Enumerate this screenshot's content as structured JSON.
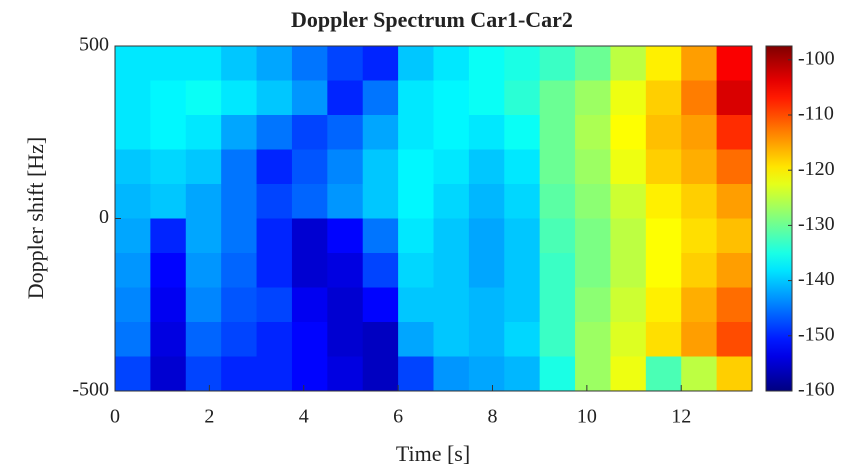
{
  "chart_data": {
    "type": "heatmap",
    "title": "Doppler Spectrum Car1-Car2",
    "x_label": "Time [s]",
    "y_label": "Doppler shift [Hz]",
    "colormap": "jet",
    "x": [
      0.375,
      1.125,
      1.875,
      2.625,
      3.375,
      4.125,
      4.875,
      5.625,
      6.375,
      7.125,
      7.875,
      8.625,
      9.375,
      10.125,
      10.875,
      11.625,
      12.375,
      13.125
    ],
    "y": [
      450,
      350,
      250,
      150,
      50,
      -50,
      -150,
      -250,
      -350,
      -450
    ],
    "z": [
      [
        -138,
        -138,
        -138,
        -140,
        -142,
        -145,
        -148,
        -150,
        -140,
        -138,
        -136,
        -135,
        -133,
        -130,
        -125,
        -120,
        -115,
        -105
      ],
      [
        -138,
        -137,
        -136,
        -138,
        -140,
        -143,
        -150,
        -145,
        -138,
        -137,
        -136,
        -134,
        -130,
        -127,
        -122,
        -118,
        -113,
        -103
      ],
      [
        -138,
        -137,
        -138,
        -142,
        -145,
        -148,
        -146,
        -142,
        -138,
        -137,
        -138,
        -136,
        -130,
        -126,
        -121,
        -117,
        -115,
        -108
      ],
      [
        -140,
        -139,
        -140,
        -145,
        -150,
        -147,
        -144,
        -140,
        -137,
        -138,
        -140,
        -138,
        -130,
        -127,
        -122,
        -118,
        -116,
        -112
      ],
      [
        -141,
        -140,
        -142,
        -145,
        -148,
        -146,
        -143,
        -140,
        -137,
        -139,
        -141,
        -139,
        -131,
        -128,
        -124,
        -120,
        -118,
        -115
      ],
      [
        -142,
        -150,
        -142,
        -145,
        -150,
        -155,
        -152,
        -145,
        -138,
        -140,
        -142,
        -140,
        -132,
        -129,
        -125,
        -121,
        -119,
        -117
      ],
      [
        -143,
        -152,
        -143,
        -146,
        -150,
        -155,
        -154,
        -148,
        -139,
        -140,
        -142,
        -140,
        -133,
        -129,
        -125,
        -121,
        -118,
        -115
      ],
      [
        -144,
        -153,
        -144,
        -147,
        -148,
        -153,
        -155,
        -152,
        -140,
        -140,
        -141,
        -140,
        -133,
        -128,
        -124,
        -120,
        -116,
        -112
      ],
      [
        -145,
        -154,
        -146,
        -148,
        -150,
        -152,
        -155,
        -156,
        -142,
        -140,
        -141,
        -139,
        -133,
        -127,
        -123,
        -119,
        -115,
        -110
      ],
      [
        -148,
        -155,
        -148,
        -150,
        -150,
        -152,
        -154,
        -156,
        -148,
        -143,
        -142,
        -141,
        -135,
        -127,
        -122,
        -132,
        -125,
        -118
      ]
    ],
    "xlim": [
      0,
      13.5
    ],
    "xticks": [
      0,
      2,
      4,
      6,
      8,
      10,
      12
    ],
    "ylim": [
      -500,
      500
    ],
    "yticks": [
      -500,
      0,
      500
    ],
    "clim": [
      -160,
      -97.5
    ],
    "cticks": [
      -100,
      -110,
      -120,
      -130,
      -140,
      -150,
      -160
    ]
  }
}
